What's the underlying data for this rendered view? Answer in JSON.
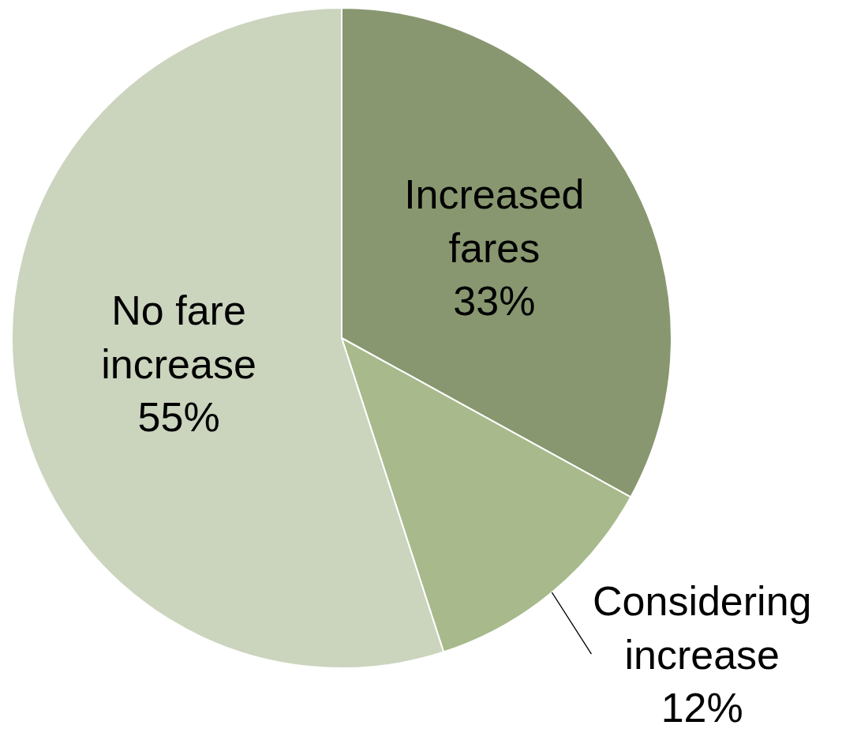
{
  "chart_data": {
    "type": "pie",
    "categories": [
      "Increased fares",
      "Considering increase",
      "No fare increase"
    ],
    "values": [
      33,
      12,
      55
    ],
    "value_labels": [
      "33%",
      "12%",
      "55%"
    ],
    "colors": [
      "#88976f",
      "#a8b98c",
      "#cbd4bd"
    ],
    "legend": false
  }
}
